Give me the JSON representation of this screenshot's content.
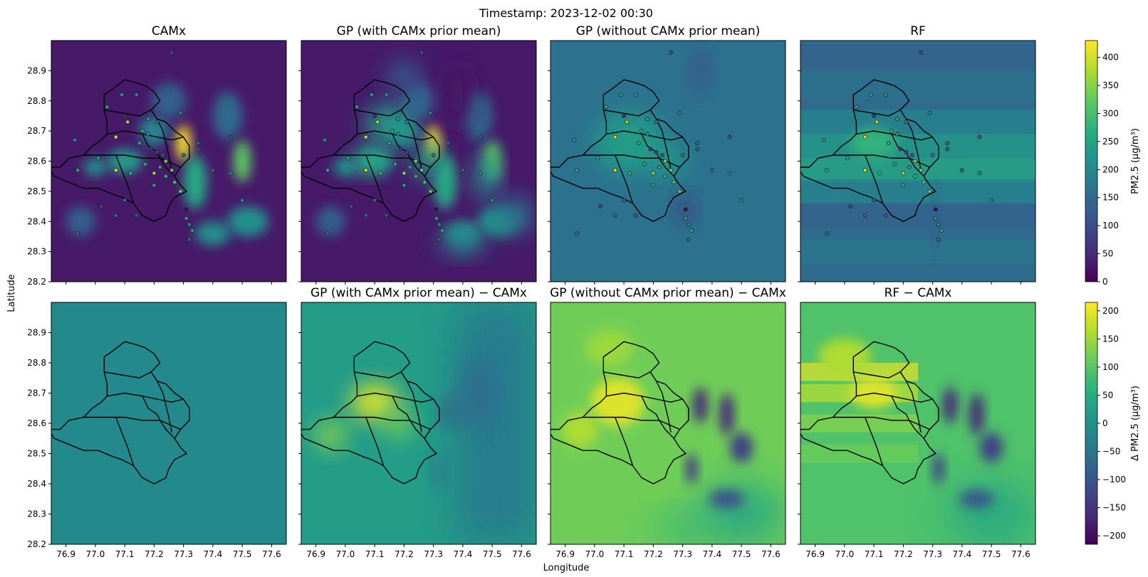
{
  "figure": {
    "suptitle": "Timestamp: 2023-12-02 00:30",
    "xlabel": "Longitude",
    "ylabel": "Latitude"
  },
  "chart_data": {
    "type": "heatmap",
    "x_range": [
      76.85,
      77.65
    ],
    "y_range": [
      28.2,
      29.0
    ],
    "x_ticks": [
      "76.9",
      "77.0",
      "77.1",
      "77.2",
      "77.3",
      "77.4",
      "77.5",
      "77.6"
    ],
    "y_ticks": [
      "28.9",
      "28.8",
      "28.7",
      "28.6",
      "28.5",
      "28.4",
      "28.3",
      "28.2"
    ],
    "colormap": "viridis",
    "colorbars": [
      {
        "label": "PM2.5 (µg/m³)",
        "min": 0,
        "max": 430,
        "ticks": [
          "400",
          "350",
          "300",
          "250",
          "200",
          "150",
          "100",
          "50",
          "0"
        ]
      },
      {
        "label": "Δ PM2.5 (µg/m³)",
        "min": -215,
        "max": 215,
        "ticks": [
          "200",
          "150",
          "100",
          "50",
          "0",
          "−50",
          "−100",
          "−150",
          "−200"
        ]
      }
    ],
    "panels": [
      {
        "title": "CAMx"
      },
      {
        "title": "GP (with CAMx prior mean)"
      },
      {
        "title": "GP (without CAMx prior mean)"
      },
      {
        "title": "RF"
      },
      {
        "title": ""
      },
      {
        "title": "GP (with CAMx prior mean) − CAMx"
      },
      {
        "title": "GP (without CAMx prior mean) − CAMx"
      },
      {
        "title": "RF − CAMx"
      }
    ],
    "stations": [
      {
        "lon": 77.26,
        "lat": 28.96,
        "pm": 100
      },
      {
        "lon": 77.09,
        "lat": 28.82,
        "pm": 230
      },
      {
        "lon": 77.14,
        "lat": 28.82,
        "pm": 220
      },
      {
        "lon": 77.04,
        "lat": 28.78,
        "pm": 240
      },
      {
        "lon": 77.29,
        "lat": 28.76,
        "pm": 200
      },
      {
        "lon": 77.1,
        "lat": 28.75,
        "pm": 60
      },
      {
        "lon": 77.18,
        "lat": 28.74,
        "pm": 240
      },
      {
        "lon": 77.11,
        "lat": 28.73,
        "pm": 370
      },
      {
        "lon": 77.21,
        "lat": 28.73,
        "pm": 180
      },
      {
        "lon": 77.16,
        "lat": 28.7,
        "pm": 260
      },
      {
        "lon": 77.18,
        "lat": 28.69,
        "pm": 220
      },
      {
        "lon": 77.07,
        "lat": 28.68,
        "pm": 390
      },
      {
        "lon": 76.93,
        "lat": 28.67,
        "pm": 220
      },
      {
        "lon": 77.15,
        "lat": 28.66,
        "pm": 260
      },
      {
        "lon": 77.35,
        "lat": 28.66,
        "pm": 140
      },
      {
        "lon": 77.35,
        "lat": 28.64,
        "pm": 120
      },
      {
        "lon": 77.46,
        "lat": 28.68,
        "pm": 120
      },
      {
        "lon": 77.19,
        "lat": 28.64,
        "pm": 70
      },
      {
        "lon": 77.21,
        "lat": 28.63,
        "pm": 90
      },
      {
        "lon": 77.23,
        "lat": 28.62,
        "pm": 110
      },
      {
        "lon": 77.3,
        "lat": 28.62,
        "pm": 160
      },
      {
        "lon": 77.01,
        "lat": 28.61,
        "pm": 250
      },
      {
        "lon": 77.24,
        "lat": 28.6,
        "pm": 330
      },
      {
        "lon": 77.17,
        "lat": 28.59,
        "pm": 250
      },
      {
        "lon": 77.22,
        "lat": 28.58,
        "pm": 240
      },
      {
        "lon": 77.4,
        "lat": 28.57,
        "pm": 150
      },
      {
        "lon": 76.94,
        "lat": 28.57,
        "pm": 260
      },
      {
        "lon": 77.07,
        "lat": 28.57,
        "pm": 400
      },
      {
        "lon": 77.12,
        "lat": 28.56,
        "pm": 280
      },
      {
        "lon": 77.2,
        "lat": 28.56,
        "pm": 360
      },
      {
        "lon": 77.26,
        "lat": 28.57,
        "pm": 330
      },
      {
        "lon": 77.24,
        "lat": 28.55,
        "pm": 280
      },
      {
        "lon": 77.46,
        "lat": 28.56,
        "pm": 200
      },
      {
        "lon": 77.27,
        "lat": 28.53,
        "pm": 300
      },
      {
        "lon": 77.2,
        "lat": 28.52,
        "pm": 250
      },
      {
        "lon": 77.29,
        "lat": 28.5,
        "pm": 330
      },
      {
        "lon": 77.5,
        "lat": 28.47,
        "pm": 210
      },
      {
        "lon": 77.1,
        "lat": 28.47,
        "pm": 140
      },
      {
        "lon": 77.02,
        "lat": 28.45,
        "pm": 100
      },
      {
        "lon": 77.31,
        "lat": 28.44,
        "pm": 10
      },
      {
        "lon": 77.07,
        "lat": 28.42,
        "pm": 140
      },
      {
        "lon": 77.14,
        "lat": 28.42,
        "pm": 120
      },
      {
        "lon": 77.31,
        "lat": 28.41,
        "pm": 240
      },
      {
        "lon": 77.32,
        "lat": 28.39,
        "pm": 200
      },
      {
        "lon": 77.33,
        "lat": 28.37,
        "pm": 260
      },
      {
        "lon": 76.94,
        "lat": 28.36,
        "pm": 150
      },
      {
        "lon": 77.32,
        "lat": 28.34,
        "pm": 140
      }
    ],
    "field_notes": [
      "smooth field, shown as estimated color blobs"
    ]
  }
}
